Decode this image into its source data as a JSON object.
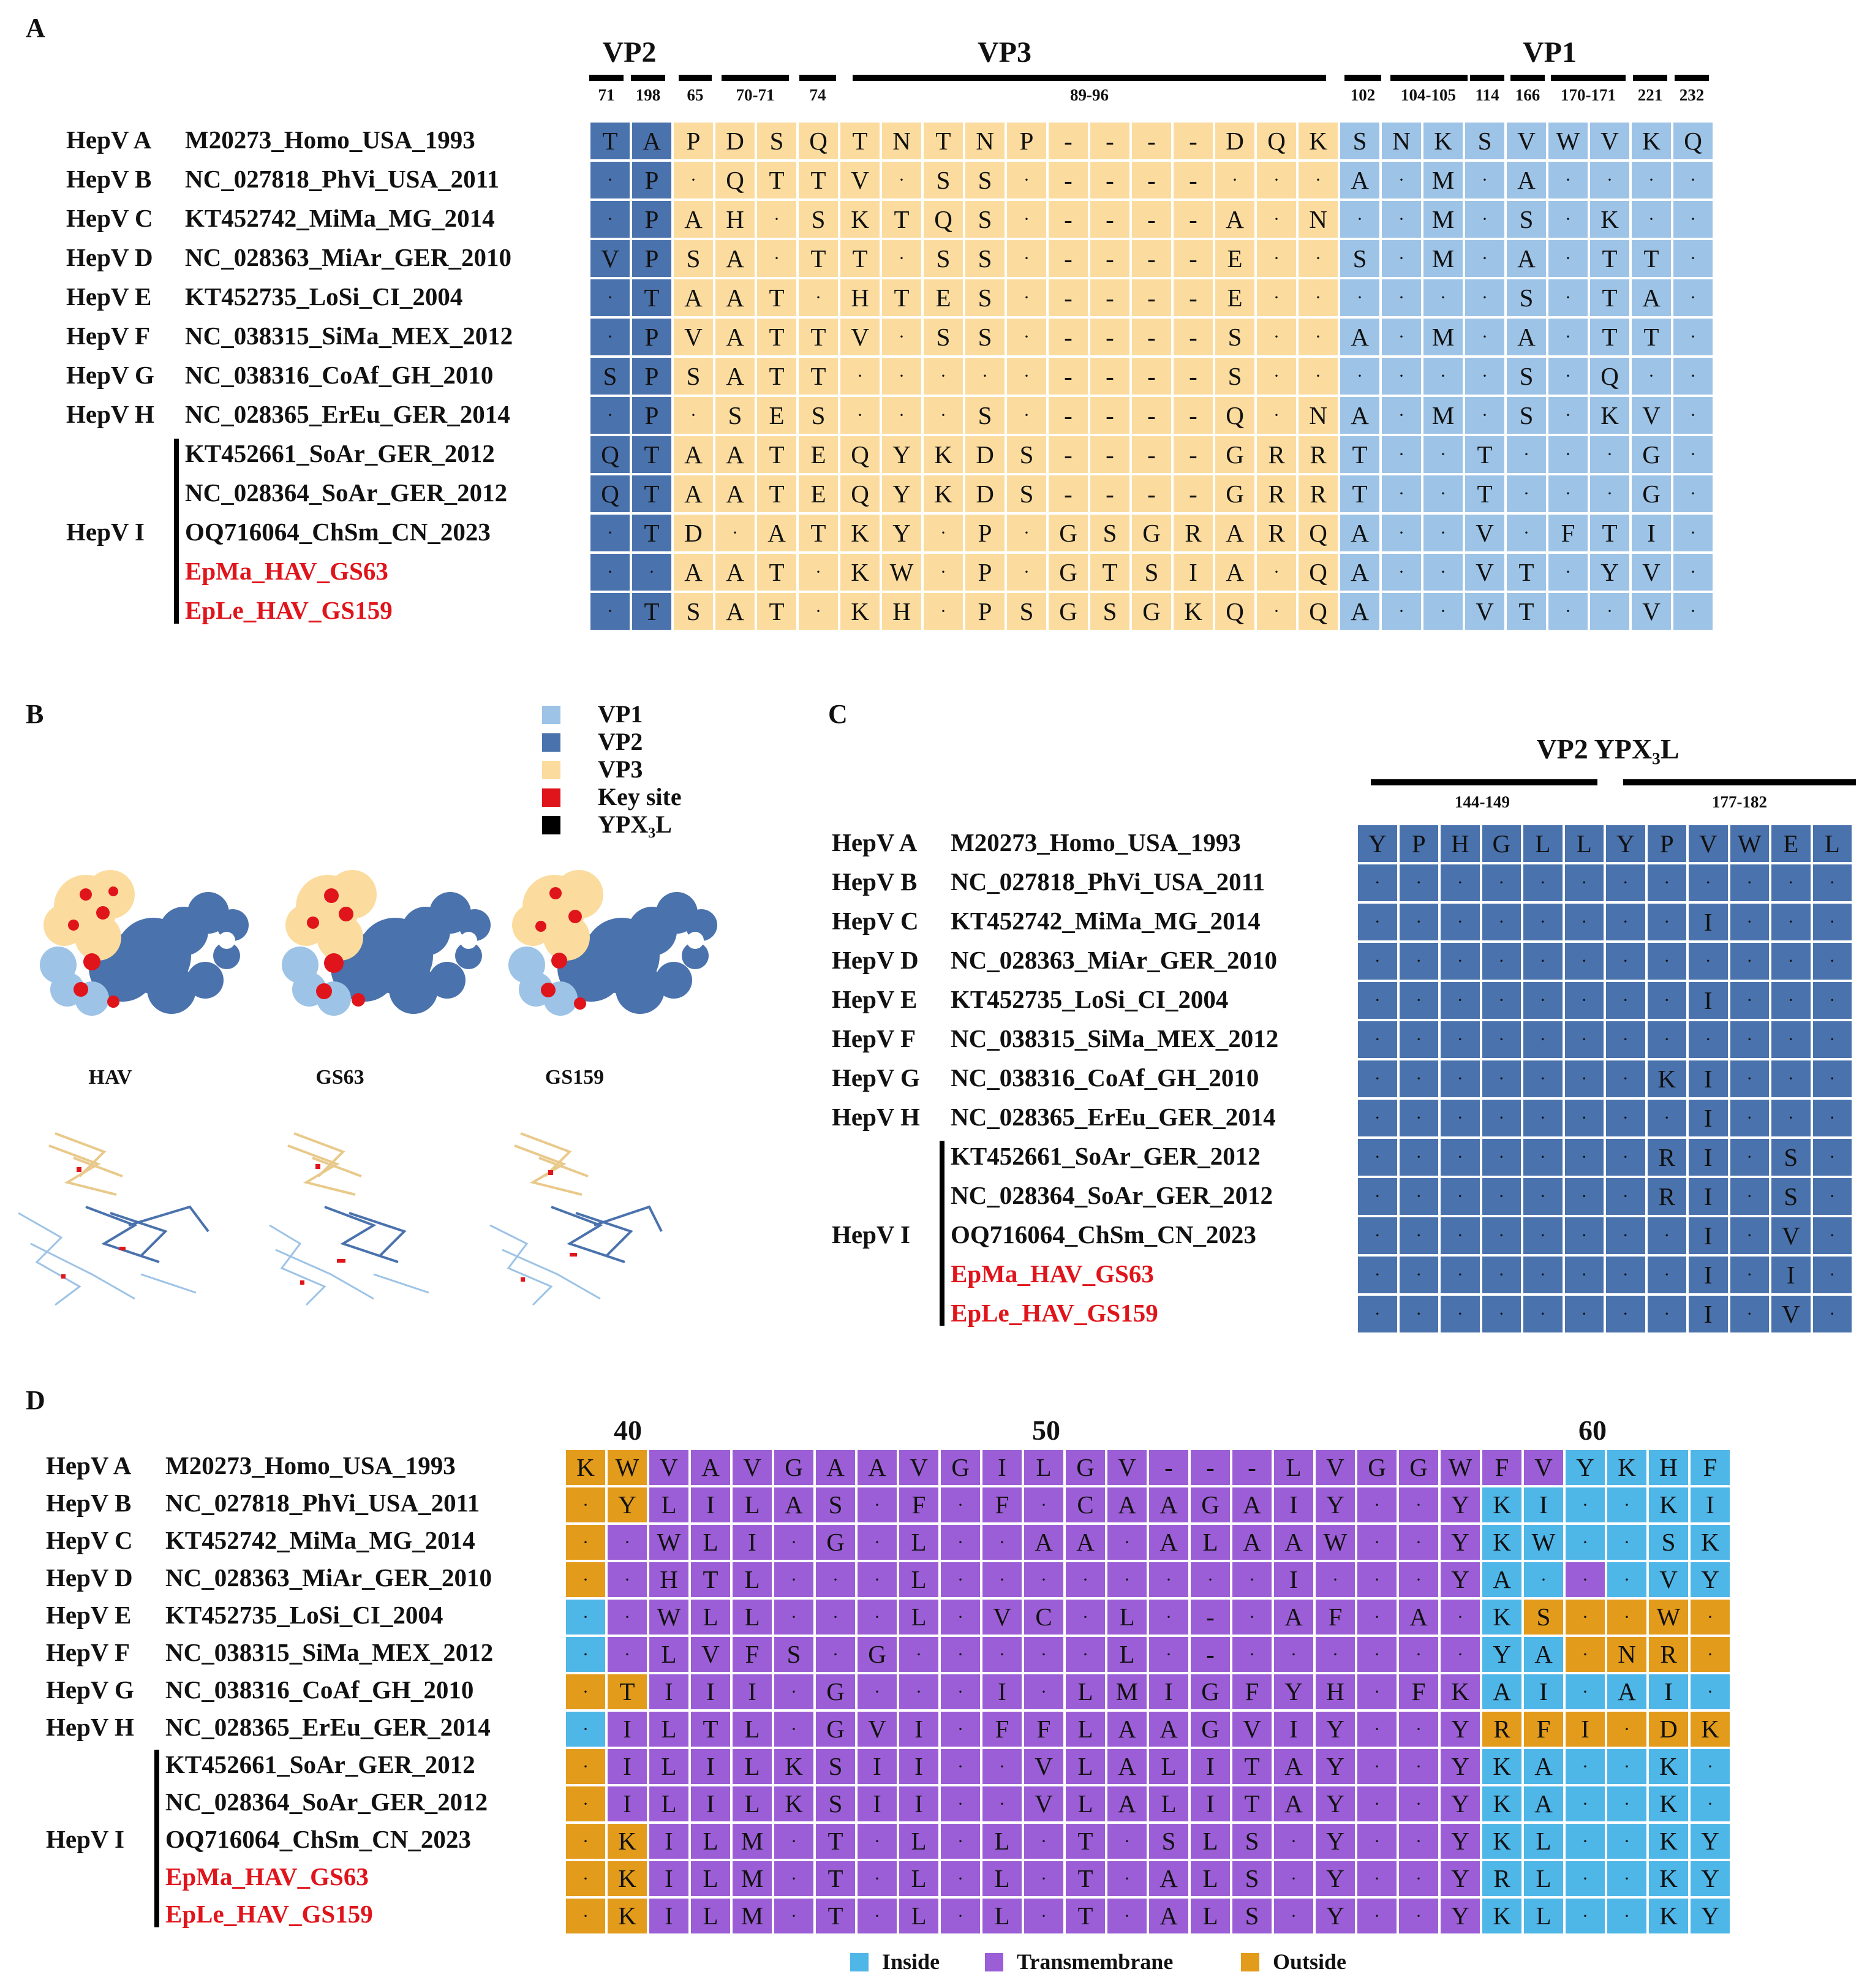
{
  "figure": {
    "panel_A": {
      "letter": "A",
      "headers": [
        "VP2",
        "VP3",
        "VP1"
      ],
      "positions": [
        "71",
        "198",
        "65",
        "70-71",
        "74",
        "89-96",
        "102",
        "104-105",
        "114",
        "166",
        "170-171",
        "221",
        "232"
      ],
      "groups": [
        {
          "label": "HepV A",
          "name": "M20273_Homo_USA_1993"
        },
        {
          "label": "HepV B",
          "name": "NC_027818_PhVi_USA_2011"
        },
        {
          "label": "HepV C",
          "name": "KT452742_MiMa_MG_2014"
        },
        {
          "label": "HepV D",
          "name": "NC_028363_MiAr_GER_2010"
        },
        {
          "label": "HepV E",
          "name": "KT452735_LoSi_CI_2004"
        },
        {
          "label": "HepV F",
          "name": "NC_038315_SiMa_MEX_2012"
        },
        {
          "label": "HepV G",
          "name": "NC_038316_CoAf_GH_2010"
        },
        {
          "label": "HepV H",
          "name": "NC_028365_ErEu_GER_2014"
        }
      ],
      "groupI": {
        "label": "HepV I",
        "names": [
          "KT452661_SoAr_GER_2012",
          "NC_028364_SoAr_GER_2012",
          "OQ716064_ChSm_CN_2023",
          "EpMa_HAV_GS63",
          "EpLe_HAV_GS159"
        ]
      },
      "rows": [
        [
          "T",
          "A",
          "P",
          "D",
          "S",
          "Q",
          "T",
          "N",
          "T",
          "N",
          "P",
          "-",
          "-",
          "-",
          "-",
          "D",
          "Q",
          "K",
          "S",
          "N",
          "K",
          "S",
          "V",
          "W",
          "V",
          "K",
          "Q"
        ],
        [
          "·",
          "P",
          "·",
          "Q",
          "T",
          "T",
          "V",
          "·",
          "S",
          "S",
          "·",
          "-",
          "-",
          "-",
          "-",
          "·",
          "·",
          "·",
          "A",
          "·",
          "M",
          "·",
          "A",
          "·",
          "·",
          "·",
          "·"
        ],
        [
          "·",
          "P",
          "A",
          "H",
          "·",
          "S",
          "K",
          "T",
          "Q",
          "S",
          "·",
          "-",
          "-",
          "-",
          "-",
          "A",
          "·",
          "N",
          "·",
          "·",
          "M",
          "·",
          "S",
          "·",
          "K",
          "·",
          "·"
        ],
        [
          "V",
          "P",
          "S",
          "A",
          "·",
          "T",
          "T",
          "·",
          "S",
          "S",
          "·",
          "-",
          "-",
          "-",
          "-",
          "E",
          "·",
          "·",
          "S",
          "·",
          "M",
          "·",
          "A",
          "·",
          "T",
          "T",
          "·"
        ],
        [
          "·",
          "T",
          "A",
          "A",
          "T",
          "·",
          "H",
          "T",
          "E",
          "S",
          "·",
          "-",
          "-",
          "-",
          "-",
          "E",
          "·",
          "·",
          "·",
          "·",
          "·",
          "·",
          "S",
          "·",
          "T",
          "A",
          "·"
        ],
        [
          "·",
          "P",
          "V",
          "A",
          "T",
          "T",
          "V",
          "·",
          "S",
          "S",
          "·",
          "-",
          "-",
          "-",
          "-",
          "S",
          "·",
          "·",
          "A",
          "·",
          "M",
          "·",
          "A",
          "·",
          "T",
          "T",
          "·"
        ],
        [
          "S",
          "P",
          "S",
          "A",
          "T",
          "T",
          "·",
          "·",
          "·",
          "·",
          "·",
          "-",
          "-",
          "-",
          "-",
          "S",
          "·",
          "·",
          "·",
          "·",
          "·",
          "·",
          "S",
          "·",
          "Q",
          "·",
          "·"
        ],
        [
          "·",
          "P",
          "·",
          "S",
          "E",
          "S",
          "·",
          "·",
          "·",
          "S",
          "·",
          "-",
          "-",
          "-",
          "-",
          "Q",
          "·",
          "N",
          "A",
          "·",
          "M",
          "·",
          "S",
          "·",
          "K",
          "V",
          "·"
        ],
        [
          "Q",
          "T",
          "A",
          "A",
          "T",
          "E",
          "Q",
          "Y",
          "K",
          "D",
          "S",
          "-",
          "-",
          "-",
          "-",
          "G",
          "R",
          "R",
          "T",
          "·",
          "·",
          "T",
          "·",
          "·",
          "·",
          "G",
          "·"
        ],
        [
          "Q",
          "T",
          "A",
          "A",
          "T",
          "E",
          "Q",
          "Y",
          "K",
          "D",
          "S",
          "-",
          "-",
          "-",
          "-",
          "G",
          "R",
          "R",
          "T",
          "·",
          "·",
          "T",
          "·",
          "·",
          "·",
          "G",
          "·"
        ],
        [
          "·",
          "T",
          "D",
          "·",
          "A",
          "T",
          "K",
          "Y",
          "·",
          "P",
          "·",
          "G",
          "S",
          "G",
          "R",
          "A",
          "R",
          "Q",
          "A",
          "·",
          "·",
          "V",
          "·",
          "F",
          "T",
          "I",
          "·"
        ],
        [
          "·",
          "·",
          "A",
          "A",
          "T",
          "·",
          "K",
          "W",
          "·",
          "P",
          "·",
          "G",
          "T",
          "S",
          "I",
          "A",
          "·",
          "Q",
          "A",
          "·",
          "·",
          "V",
          "T",
          "·",
          "Y",
          "V",
          "·"
        ],
        [
          "·",
          "T",
          "S",
          "A",
          "T",
          "·",
          "K",
          "H",
          "·",
          "P",
          "S",
          "G",
          "S",
          "G",
          "K",
          "Q",
          "·",
          "Q",
          "A",
          "·",
          "·",
          "V",
          "T",
          "·",
          "·",
          "V",
          "·"
        ]
      ],
      "colors": {
        "VP2": "#4a72ad",
        "VP3": "#fbdc9e",
        "VP1": "#9dc3e6"
      }
    },
    "panel_B": {
      "letter": "B",
      "legend": [
        {
          "label": "VP1",
          "color": "#9dc3e6"
        },
        {
          "label": "VP2",
          "color": "#4a72ad"
        },
        {
          "label": "VP3",
          "color": "#fbdc9e"
        },
        {
          "label": "Key site",
          "color": "#e0141b"
        },
        {
          "label": "YPX₃L",
          "color": "#000000"
        }
      ],
      "structure_labels": [
        "HAV",
        "GS63",
        "GS159"
      ]
    },
    "panel_C": {
      "letter": "C",
      "title": "VP2 YPX₃L",
      "ranges": [
        "144-149",
        "177-182"
      ],
      "groups": [
        {
          "label": "HepV A",
          "name": "M20273_Homo_USA_1993"
        },
        {
          "label": "HepV B",
          "name": "NC_027818_PhVi_USA_2011"
        },
        {
          "label": "HepV C",
          "name": "KT452742_MiMa_MG_2014"
        },
        {
          "label": "HepV D",
          "name": "NC_028363_MiAr_GER_2010"
        },
        {
          "label": "HepV E",
          "name": "KT452735_LoSi_CI_2004"
        },
        {
          "label": "HepV F",
          "name": "NC_038315_SiMa_MEX_2012"
        },
        {
          "label": "HepV G",
          "name": "NC_038316_CoAf_GH_2010"
        },
        {
          "label": "HepV H",
          "name": "NC_028365_ErEu_GER_2014"
        }
      ],
      "groupI": {
        "label": "HepV I",
        "names": [
          "KT452661_SoAr_GER_2012",
          "NC_028364_SoAr_GER_2012",
          "OQ716064_ChSm_CN_2023",
          "EpMa_HAV_GS63",
          "EpLe_HAV_GS159"
        ]
      },
      "rows": [
        [
          "Y",
          "P",
          "H",
          "G",
          "L",
          "L",
          "Y",
          "P",
          "V",
          "W",
          "E",
          "L"
        ],
        [
          "·",
          "·",
          "·",
          "·",
          "·",
          "·",
          "·",
          "·",
          "·",
          "·",
          "·",
          "·"
        ],
        [
          "·",
          "·",
          "·",
          "·",
          "·",
          "·",
          "·",
          "·",
          "I",
          "·",
          "·",
          "·"
        ],
        [
          "·",
          "·",
          "·",
          "·",
          "·",
          "·",
          "·",
          "·",
          "·",
          "·",
          "·",
          "·"
        ],
        [
          "·",
          "·",
          "·",
          "·",
          "·",
          "·",
          "·",
          "·",
          "I",
          "·",
          "·",
          "·"
        ],
        [
          "·",
          "·",
          "·",
          "·",
          "·",
          "·",
          "·",
          "·",
          "·",
          "·",
          "·",
          "·"
        ],
        [
          "·",
          "·",
          "·",
          "·",
          "·",
          "·",
          "·",
          "K",
          "I",
          "·",
          "·",
          "·"
        ],
        [
          "·",
          "·",
          "·",
          "·",
          "·",
          "·",
          "·",
          "·",
          "I",
          "·",
          "·",
          "·"
        ],
        [
          "·",
          "·",
          "·",
          "·",
          "·",
          "·",
          "·",
          "R",
          "I",
          "·",
          "S",
          "·"
        ],
        [
          "·",
          "·",
          "·",
          "·",
          "·",
          "·",
          "·",
          "R",
          "I",
          "·",
          "S",
          "·"
        ],
        [
          "·",
          "·",
          "·",
          "·",
          "·",
          "·",
          "·",
          "·",
          "I",
          "·",
          "V",
          "·"
        ],
        [
          "·",
          "·",
          "·",
          "·",
          "·",
          "·",
          "·",
          "·",
          "I",
          "·",
          "I",
          "·"
        ],
        [
          "·",
          "·",
          "·",
          "·",
          "·",
          "·",
          "·",
          "·",
          "I",
          "·",
          "V",
          "·"
        ]
      ]
    },
    "panel_D": {
      "letter": "D",
      "ticks": [
        "40",
        "50",
        "60"
      ],
      "groups": [
        {
          "label": "HepV A",
          "name": "M20273_Homo_USA_1993"
        },
        {
          "label": "HepV B",
          "name": "NC_027818_PhVi_USA_2011"
        },
        {
          "label": "HepV C",
          "name": "KT452742_MiMa_MG_2014"
        },
        {
          "label": "HepV D",
          "name": "NC_028363_MiAr_GER_2010"
        },
        {
          "label": "HepV E",
          "name": "KT452735_LoSi_CI_2004"
        },
        {
          "label": "HepV F",
          "name": "NC_038315_SiMa_MEX_2012"
        },
        {
          "label": "HepV G",
          "name": "NC_038316_CoAf_GH_2010"
        },
        {
          "label": "HepV H",
          "name": "NC_028365_ErEu_GER_2014"
        }
      ],
      "groupI": {
        "label": "HepV I",
        "names": [
          "KT452661_SoAr_GER_2012",
          "NC_028364_SoAr_GER_2012",
          "OQ716064_ChSm_CN_2023",
          "EpMa_HAV_GS63",
          "EpLe_HAV_GS159"
        ]
      },
      "rows": [
        [
          "K",
          "W",
          "V",
          "A",
          "V",
          "G",
          "A",
          "A",
          "V",
          "G",
          "I",
          "L",
          "G",
          "V",
          "-",
          "-",
          "-",
          "L",
          "V",
          "G",
          "G",
          "W",
          "F",
          "V",
          "Y",
          "K",
          "H",
          "F"
        ],
        [
          "·",
          "Y",
          "L",
          "I",
          "L",
          "A",
          "S",
          "·",
          "F",
          "·",
          "F",
          "·",
          "C",
          "A",
          "A",
          "G",
          "A",
          "I",
          "Y",
          "·",
          "·",
          "Y",
          "K",
          "I",
          "·",
          "·",
          "K",
          "I"
        ],
        [
          "·",
          "·",
          "W",
          "L",
          "I",
          "·",
          "G",
          "·",
          "L",
          "·",
          "·",
          "A",
          "A",
          "·",
          "A",
          "L",
          "A",
          "A",
          "W",
          "·",
          "·",
          "Y",
          "K",
          "W",
          "·",
          "·",
          "S",
          "K"
        ],
        [
          "·",
          "·",
          "H",
          "T",
          "L",
          "·",
          "·",
          "·",
          "L",
          "·",
          "·",
          "·",
          "·",
          "·",
          "·",
          "·",
          "·",
          "I",
          "·",
          "·",
          "·",
          "Y",
          "A",
          "·",
          "·",
          "·",
          "V",
          "Y"
        ],
        [
          "·",
          "·",
          "W",
          "L",
          "L",
          "·",
          "·",
          "·",
          "L",
          "·",
          "V",
          "C",
          "·",
          "L",
          "·",
          "-",
          "·",
          "A",
          "F",
          "·",
          "A",
          "·",
          "K",
          "S",
          "·",
          "·",
          "W",
          "·"
        ],
        [
          "·",
          "·",
          "L",
          "V",
          "F",
          "S",
          "·",
          "G",
          "·",
          "·",
          "·",
          "·",
          "·",
          "L",
          "·",
          "-",
          "·",
          "·",
          "·",
          "·",
          "·",
          "·",
          "Y",
          "A",
          "·",
          "N",
          "R",
          "·"
        ],
        [
          "·",
          "T",
          "I",
          "I",
          "I",
          "·",
          "G",
          "·",
          "·",
          "·",
          "I",
          "·",
          "L",
          "M",
          "I",
          "G",
          "F",
          "Y",
          "H",
          "·",
          "F",
          "K",
          "A",
          "I",
          "·",
          "A",
          "I",
          "·"
        ],
        [
          "·",
          "I",
          "L",
          "T",
          "L",
          "·",
          "G",
          "V",
          "I",
          "·",
          "F",
          "F",
          "L",
          "A",
          "A",
          "G",
          "V",
          "I",
          "Y",
          "·",
          "·",
          "Y",
          "R",
          "F",
          "I",
          "·",
          "D",
          "K"
        ],
        [
          "·",
          "I",
          "L",
          "I",
          "L",
          "K",
          "S",
          "I",
          "I",
          "·",
          "·",
          "V",
          "L",
          "A",
          "L",
          "I",
          "T",
          "A",
          "Y",
          "·",
          "·",
          "Y",
          "K",
          "A",
          "·",
          "·",
          "K",
          "·"
        ],
        [
          "·",
          "I",
          "L",
          "I",
          "L",
          "K",
          "S",
          "I",
          "I",
          "·",
          "·",
          "V",
          "L",
          "A",
          "L",
          "I",
          "T",
          "A",
          "Y",
          "·",
          "·",
          "Y",
          "K",
          "A",
          "·",
          "·",
          "K",
          "·"
        ],
        [
          "·",
          "K",
          "I",
          "L",
          "M",
          "·",
          "T",
          "·",
          "L",
          "·",
          "L",
          "·",
          "T",
          "·",
          "S",
          "L",
          "S",
          "·",
          "Y",
          "·",
          "·",
          "Y",
          "K",
          "L",
          "·",
          "·",
          "K",
          "Y"
        ],
        [
          "·",
          "K",
          "I",
          "L",
          "M",
          "·",
          "T",
          "·",
          "L",
          "·",
          "L",
          "·",
          "T",
          "·",
          "A",
          "L",
          "S",
          "·",
          "Y",
          "·",
          "·",
          "Y",
          "R",
          "L",
          "·",
          "·",
          "K",
          "Y"
        ],
        [
          "·",
          "K",
          "I",
          "L",
          "M",
          "·",
          "T",
          "·",
          "L",
          "·",
          "L",
          "·",
          "T",
          "·",
          "A",
          "L",
          "S",
          "·",
          "Y",
          "·",
          "·",
          "Y",
          "K",
          "L",
          "·",
          "·",
          "K",
          "Y"
        ]
      ],
      "regions": [
        "OOMMMMMMMMMMMMMMMMMMMMMMIIII",
        "OOMMMMMMMMMMMMMMMMMMMMIIIIII",
        "OMMMMMMMMMMMMMMMMMMMMMIIIIII",
        "OMMMMMMMMMMMMMMMMMMMMMIIMIII",
        "IMMMMMMMMMMMMMMMMMMMMMIOOOOO",
        "IMMMMMMMMMMMMMMMMMMMMMIIOOOO",
        "OOMMMMMMMMMMMMMMMMMMMMIIIIII",
        "IMMMMMMMMMMMMMMMMMMMMMOOOOOO",
        "OMMMMMMMMMMMMMMMMMMMMMIIIIII",
        "OMMMMMMMMMMMMMMMMMMMMMIIIIII",
        "OOMMMMMMMMMMMMMMMMMMMMIIIIII",
        "OOMMMMMMMMMMMMMMMMMMMMIIIIII",
        "OOMMMMMMMMMMMMMMMMMMMMIIIIII"
      ],
      "legend": [
        {
          "label": "Inside",
          "color": "#4fb6e8"
        },
        {
          "label": "Transmembrane",
          "color": "#9c5ed6"
        },
        {
          "label": "Outside",
          "color": "#e39b1b"
        }
      ]
    }
  }
}
